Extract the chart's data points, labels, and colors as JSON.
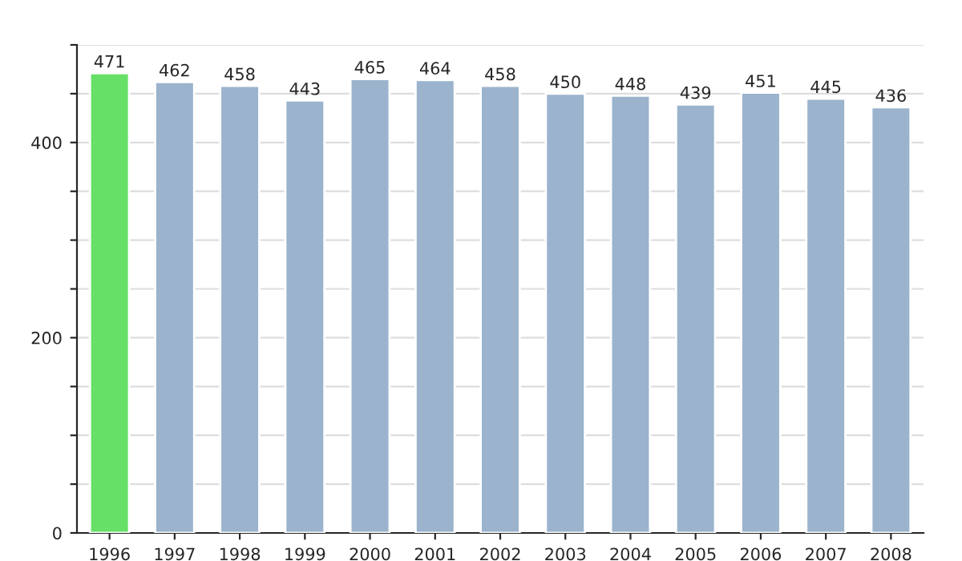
{
  "chart_data": {
    "type": "bar",
    "categories": [
      "1996",
      "1997",
      "1998",
      "1999",
      "2000",
      "2001",
      "2002",
      "2003",
      "2004",
      "2005",
      "2006",
      "2007",
      "2008"
    ],
    "values": [
      471,
      462,
      458,
      443,
      465,
      464,
      458,
      450,
      448,
      439,
      451,
      445,
      436
    ],
    "colors": [
      "#66e066",
      "#9bb3cc",
      "#9bb3cc",
      "#9bb3cc",
      "#9bb3cc",
      "#9bb3cc",
      "#9bb3cc",
      "#9bb3cc",
      "#9bb3cc",
      "#9bb3cc",
      "#9bb3cc",
      "#9bb3cc",
      "#9bb3cc"
    ],
    "ylim": [
      0,
      500
    ],
    "yticks": [
      0,
      {
        "value": 50,
        "label": null
      },
      {
        "value": 100,
        "label": null
      },
      {
        "value": 150,
        "label": null
      },
      200,
      {
        "value": 250,
        "label": null
      },
      {
        "value": 300,
        "label": null
      },
      {
        "value": 350,
        "label": null
      },
      400,
      {
        "value": 450,
        "label": null
      },
      {
        "value": 500,
        "label": null
      }
    ],
    "grid": "y",
    "data_labels": true
  }
}
